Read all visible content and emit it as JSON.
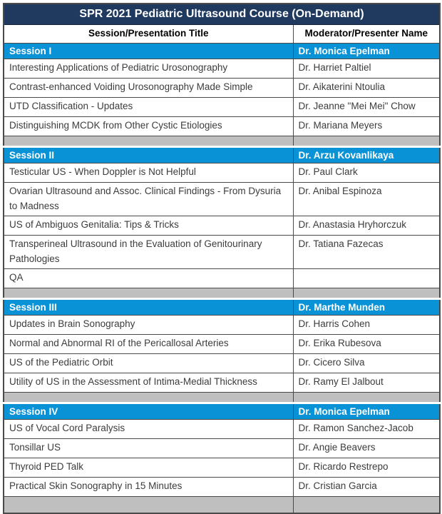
{
  "page_title": "SPR 2021 Pediatric Ultrasound Course (On-Demand)",
  "table": {
    "columns": [
      {
        "label": "Session/Presentation Title"
      },
      {
        "label": "Moderator/Presenter Name"
      }
    ],
    "sections": [
      {
        "session_label": "Session I",
        "moderator": "Dr. Monica Epelman",
        "presentations": [
          {
            "title": "Interesting Applications of Pediatric Urosonography",
            "presenter": "Dr. Harriet Paltiel"
          },
          {
            "title": "Contrast-enhanced Voiding Urosonography Made Simple",
            "presenter": "Dr. Aikaterini Ntoulia"
          },
          {
            "title": "UTD Classification - Updates",
            "presenter": "Dr. Jeanne \"Mei Mei\" Chow"
          },
          {
            "title": "Distinguishing MCDK from Other Cystic Etiologies",
            "presenter": "Dr. Mariana Meyers"
          }
        ]
      },
      {
        "session_label": "Session II",
        "moderator": "Dr. Arzu Kovanlikaya",
        "presentations": [
          {
            "title": "Testicular US - When Doppler is Not Helpful",
            "presenter": "Dr. Paul Clark"
          },
          {
            "title": "Ovarian Ultrasound and Assoc. Clinical Findings - From Dysuria to Madness",
            "presenter": "Dr. Anibal Espinoza"
          },
          {
            "title": "US of Ambiguos Genitalia: Tips & Tricks",
            "presenter": "Dr. Anastasia Hryhorczuk"
          },
          {
            "title": "Transperineal Ultrasound in the Evaluation of Genitourinary Pathologies",
            "presenter": "Dr. Tatiana Fazecas"
          },
          {
            "title": "QA",
            "presenter": ""
          }
        ]
      },
      {
        "session_label": "Session III",
        "moderator": "Dr. Marthe Munden",
        "presentations": [
          {
            "title": "Updates in Brain Sonography",
            "presenter": "Dr. Harris Cohen"
          },
          {
            "title": "Normal and Abnormal RI of the Pericallosal Arteries",
            "presenter": "Dr. Erika Rubesova"
          },
          {
            "title": "US of the Pediatric Orbit",
            "presenter": "Dr. Cicero Silva"
          },
          {
            "title": "Utility of US in the Assessment of Intima-Medial Thickness",
            "presenter": "Dr. Ramy El Jalbout"
          }
        ]
      },
      {
        "session_label": "Session IV",
        "moderator": "Dr. Monica Epelman",
        "presentations": [
          {
            "title": "US of Vocal Cord Paralysis",
            "presenter": "Dr. Ramon Sanchez-Jacob"
          },
          {
            "title": "Tonsillar US",
            "presenter": "Dr. Angie Beavers"
          },
          {
            "title": "Thyroid PED Talk",
            "presenter": "Dr. Ricardo Restrepo"
          },
          {
            "title": "Practical Skin Sonography in 15 Minutes",
            "presenter": "Dr. Cristian Garcia"
          }
        ]
      }
    ]
  },
  "colors": {
    "title_bar_bg": "#1F3A5E",
    "session_row_bg": "#0992D5",
    "spacer_row_bg": "#BFBFBF",
    "border": "#4A4A4A",
    "title_text": "#FFFFFF",
    "body_text": "#3C3C3C"
  }
}
